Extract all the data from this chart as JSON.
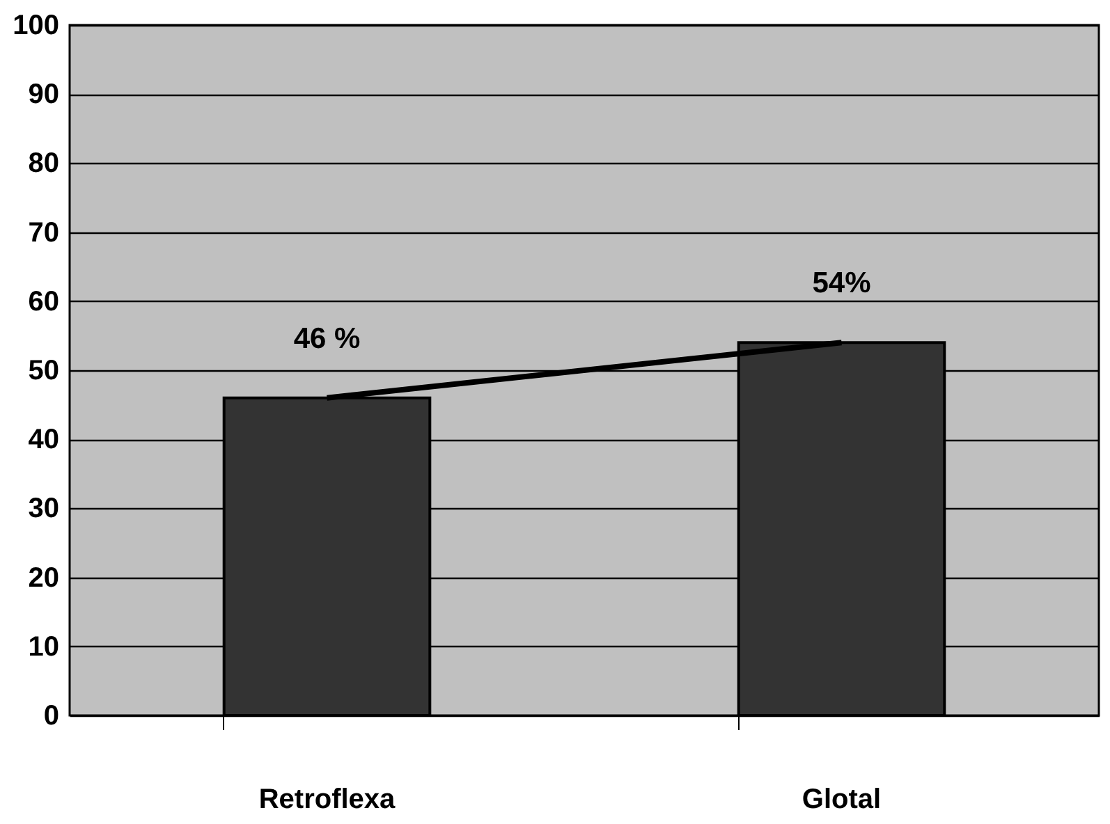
{
  "chart_data": {
    "type": "bar",
    "categories": [
      "Retroflexa",
      "Glotal"
    ],
    "series": [
      {
        "color": "#333333",
        "values": [
          46,
          54
        ],
        "value_labels": [
          "46 %",
          "54%"
        ]
      },
      {
        "type": "line",
        "color": "#000000",
        "values": [
          46,
          54
        ]
      }
    ],
    "ylim": [
      0,
      100
    ],
    "yticks": [
      0,
      10,
      20,
      30,
      40,
      50,
      60,
      70,
      80,
      90,
      100
    ],
    "grid": "y",
    "legend": false
  }
}
